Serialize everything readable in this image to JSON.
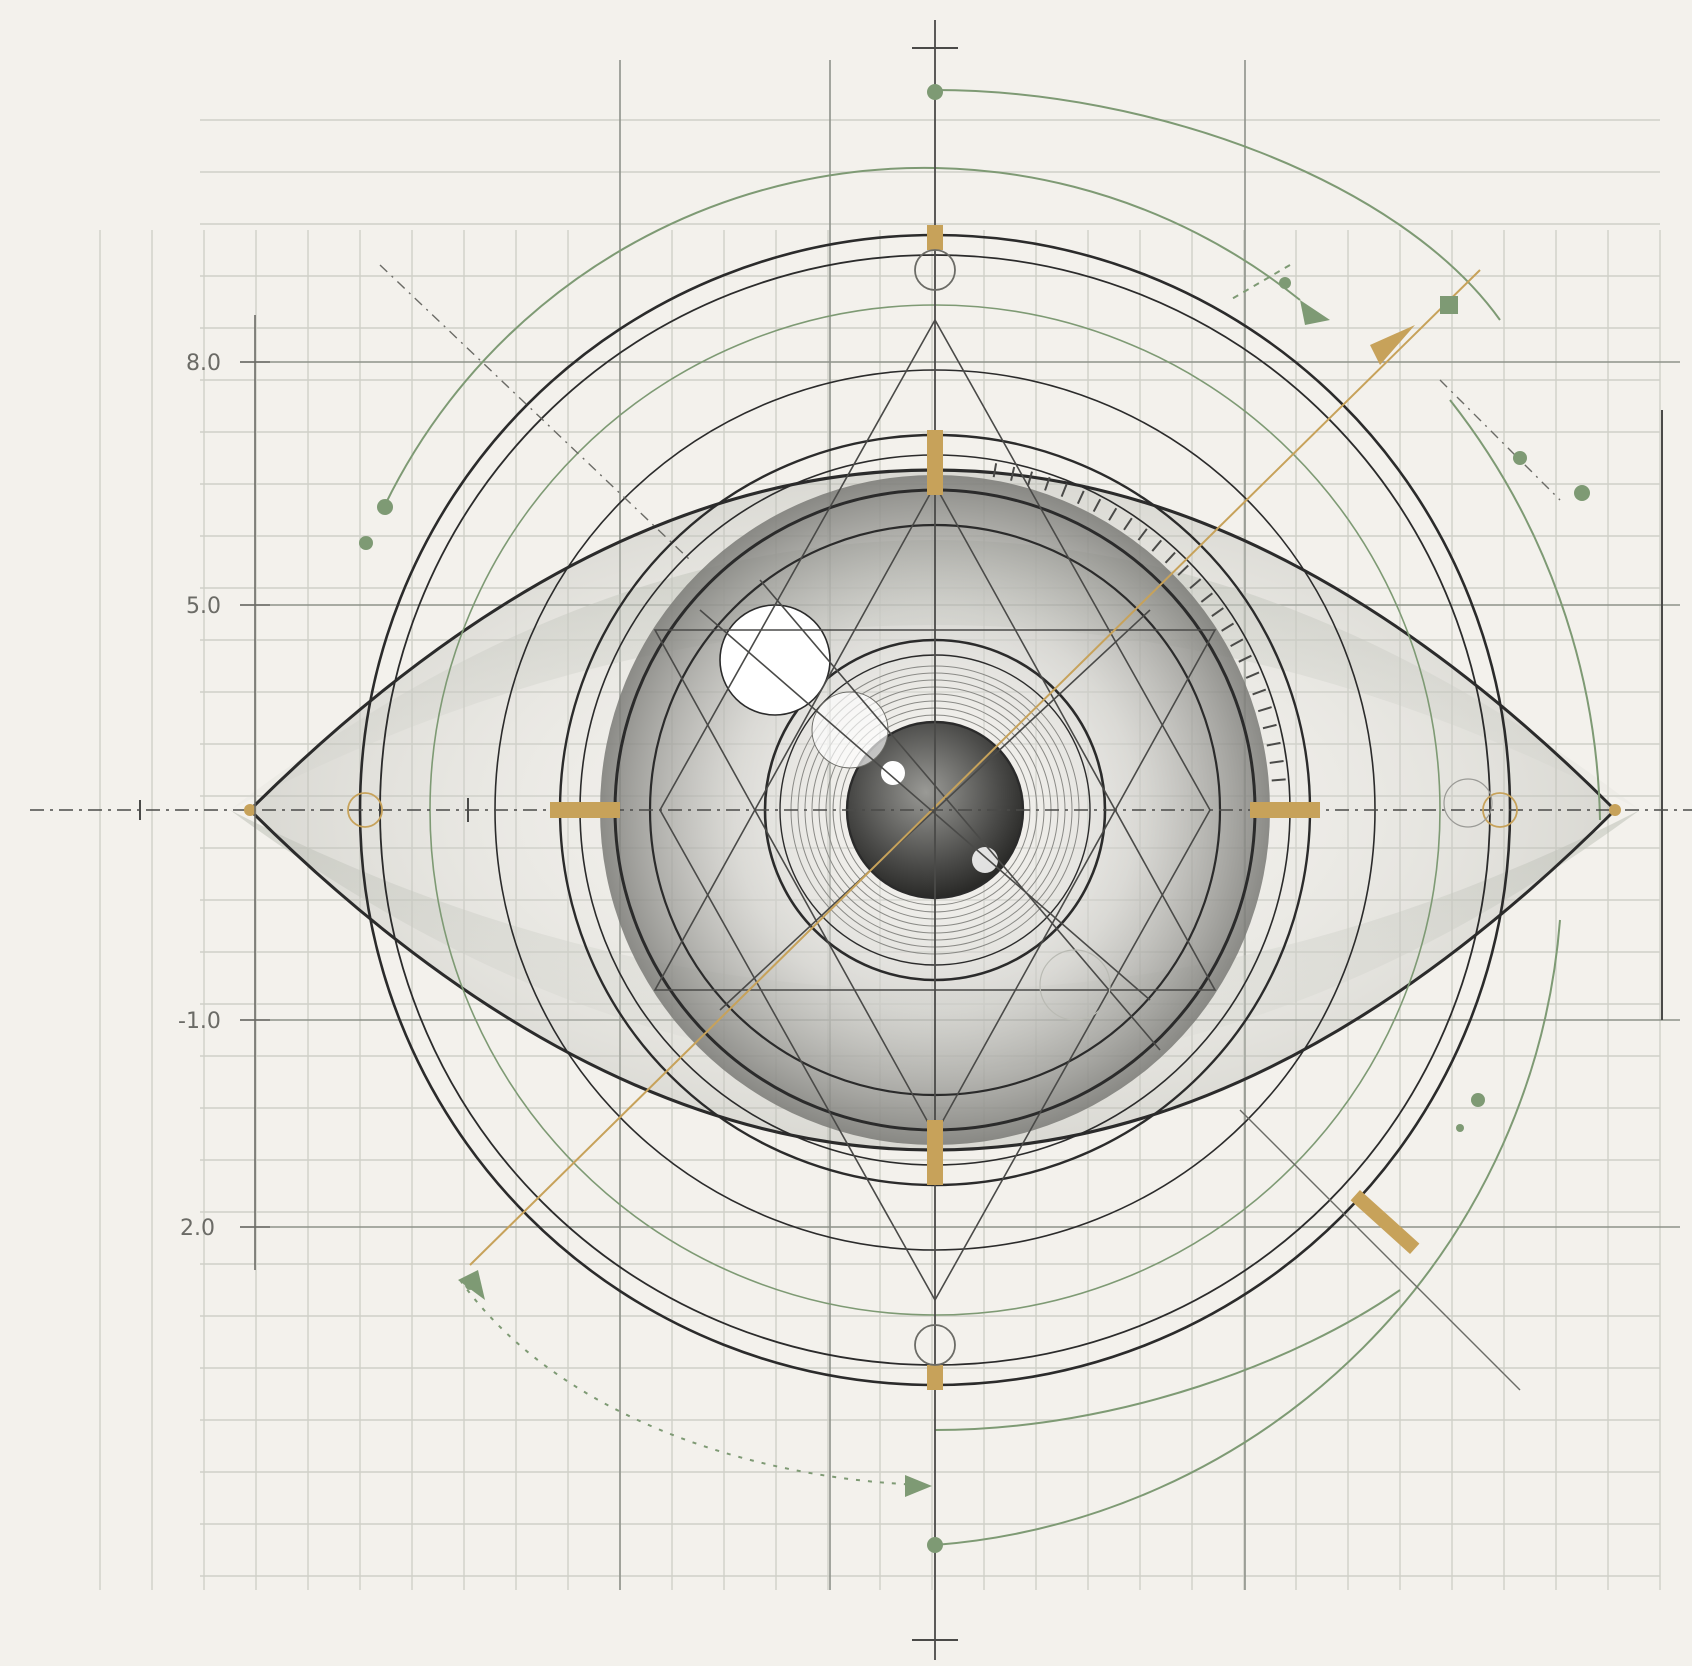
{
  "diagram": {
    "axis_labels": [
      "8.0",
      "5.0",
      "-1.0",
      "2.0"
    ]
  },
  "colors": {
    "paper": "#f3f1ec",
    "grid": "#cfd0c8",
    "grid_major": "#8e928a",
    "ink": "#2b2b2b",
    "green": "#7e9a74",
    "ochre": "#c7a25a",
    "iris_shade": "#9a9a96"
  }
}
